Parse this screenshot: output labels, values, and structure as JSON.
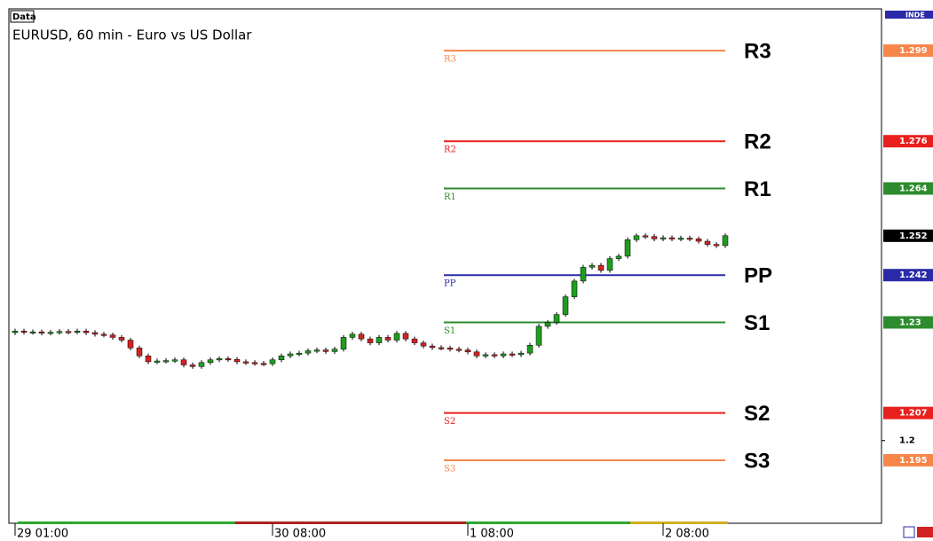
{
  "chart_data": {
    "type": "candlestick",
    "box_label": "Data",
    "title": "EURUSD, 60 min - Euro vs US Dollar",
    "open": [
      1.2274,
      1.2278,
      1.2275,
      1.2276,
      1.2273,
      1.2275,
      1.2277,
      1.2276,
      1.2278,
      1.2274,
      1.227,
      1.2268,
      1.2262,
      1.2255,
      1.2235,
      1.2215,
      1.22,
      1.2202,
      1.2203,
      1.2205,
      1.2192,
      1.2188,
      1.2198,
      1.2205,
      1.2208,
      1.2206,
      1.22,
      1.2198,
      1.2196,
      1.2195,
      1.2205,
      1.2215,
      1.222,
      1.2222,
      1.2228,
      1.223,
      1.2226,
      1.2232,
      1.2262,
      1.227,
      1.2258,
      1.2248,
      1.2262,
      1.2255,
      1.2272,
      1.2258,
      1.2248,
      1.224,
      1.2236,
      1.2235,
      1.2232,
      1.223,
      1.2225,
      1.2215,
      1.2218,
      1.2215,
      1.222,
      1.2218,
      1.2222,
      1.2242,
      1.229,
      1.23,
      1.232,
      1.2365,
      1.2405,
      1.244,
      1.2445,
      1.2432,
      1.2462,
      1.2468,
      1.251,
      1.252,
      1.2518,
      1.2512,
      1.2515,
      1.2512,
      1.2514,
      1.2512,
      1.2506,
      1.2498,
      1.2495
    ],
    "high": [
      1.2284,
      1.2284,
      1.2282,
      1.2282,
      1.2281,
      1.2283,
      1.2283,
      1.2284,
      1.2284,
      1.228,
      1.2276,
      1.2274,
      1.2268,
      1.2261,
      1.2241,
      1.2221,
      1.2208,
      1.2209,
      1.2211,
      1.2211,
      1.2198,
      1.2204,
      1.2211,
      1.2214,
      1.2214,
      1.2212,
      1.2206,
      1.2204,
      1.2202,
      1.2211,
      1.2221,
      1.2226,
      1.2228,
      1.2234,
      1.2236,
      1.2236,
      1.2238,
      1.2268,
      1.2276,
      1.2276,
      1.2264,
      1.2268,
      1.2268,
      1.2278,
      1.2278,
      1.2264,
      1.2254,
      1.2246,
      1.2242,
      1.2241,
      1.2238,
      1.2236,
      1.2231,
      1.2224,
      1.2224,
      1.2226,
      1.2226,
      1.2228,
      1.2248,
      1.2296,
      1.2306,
      1.2326,
      1.2371,
      1.2411,
      1.2446,
      1.2451,
      1.2451,
      1.2468,
      1.2474,
      1.2516,
      1.2526,
      1.2526,
      1.2524,
      1.2521,
      1.2521,
      1.252,
      1.252,
      1.2518,
      1.2512,
      1.2504,
      1.2526
    ],
    "low": [
      1.2268,
      1.2269,
      1.2269,
      1.2267,
      1.2267,
      1.2269,
      1.227,
      1.227,
      1.2268,
      1.2264,
      1.2262,
      1.2256,
      1.2249,
      1.2229,
      1.2209,
      1.2194,
      1.2194,
      1.2196,
      1.2197,
      1.2186,
      1.2182,
      1.2182,
      1.2192,
      1.2199,
      1.22,
      1.2194,
      1.2192,
      1.219,
      1.2189,
      1.2189,
      1.2199,
      1.2209,
      1.2214,
      1.2216,
      1.2222,
      1.222,
      1.222,
      1.2226,
      1.2256,
      1.2252,
      1.2242,
      1.2242,
      1.2249,
      1.2249,
      1.2252,
      1.2242,
      1.2234,
      1.223,
      1.2229,
      1.2226,
      1.2224,
      1.2219,
      1.2209,
      1.2209,
      1.2209,
      1.2209,
      1.2212,
      1.2212,
      1.2216,
      1.2236,
      1.2284,
      1.2294,
      1.2314,
      1.2359,
      1.2399,
      1.2434,
      1.2426,
      1.2426,
      1.2456,
      1.2462,
      1.2504,
      1.2512,
      1.2506,
      1.2506,
      1.2506,
      1.2506,
      1.2506,
      1.25,
      1.2492,
      1.2489,
      1.2489
    ],
    "close": [
      1.2278,
      1.2275,
      1.2276,
      1.2273,
      1.2275,
      1.2277,
      1.2276,
      1.2278,
      1.2274,
      1.227,
      1.2268,
      1.2262,
      1.2255,
      1.2235,
      1.2215,
      1.22,
      1.2202,
      1.2203,
      1.2205,
      1.2192,
      1.2188,
      1.2198,
      1.2205,
      1.2208,
      1.2206,
      1.22,
      1.2198,
      1.2196,
      1.2195,
      1.2205,
      1.2215,
      1.222,
      1.2222,
      1.2228,
      1.223,
      1.2226,
      1.2232,
      1.2262,
      1.227,
      1.2258,
      1.2248,
      1.2262,
      1.2255,
      1.2272,
      1.2258,
      1.2248,
      1.224,
      1.2236,
      1.2235,
      1.2232,
      1.223,
      1.2225,
      1.2215,
      1.2218,
      1.2215,
      1.222,
      1.2218,
      1.2222,
      1.2242,
      1.229,
      1.23,
      1.232,
      1.2365,
      1.2405,
      1.244,
      1.2445,
      1.2432,
      1.2462,
      1.2468,
      1.251,
      1.252,
      1.2518,
      1.2512,
      1.2515,
      1.2512,
      1.2514,
      1.2512,
      1.2506,
      1.2498,
      1.2495,
      1.252
    ],
    "up_color": "#1e9e1e",
    "down_color": "#d42222",
    "levels": [
      {
        "name": "R3",
        "value": 1.299,
        "color": "#f7864a"
      },
      {
        "name": "R2",
        "value": 1.276,
        "color": "#e8201e"
      },
      {
        "name": "R1",
        "value": 1.264,
        "color": "#2e8b2e"
      },
      {
        "name": "PP",
        "value": 1.242,
        "color": "#2a2aa8"
      },
      {
        "name": "S1",
        "value": 1.23,
        "color": "#2e8b2e"
      },
      {
        "name": "S2",
        "value": 1.207,
        "color": "#e8201e"
      },
      {
        "name": "S3",
        "value": 1.195,
        "color": "#f7864a"
      }
    ],
    "last_price": 1.252,
    "indicator_tag": "INDE",
    "ylim": [
      1.179,
      1.3096
    ],
    "yticks": [
      1.2
    ],
    "xlim": [
      -0.7,
      97.6
    ],
    "xticks": [
      {
        "value": 0,
        "label": "29 01:00"
      },
      {
        "value": 29,
        "label": "30 08:00"
      },
      {
        "value": 51,
        "label": "1 08:00"
      },
      {
        "value": 73,
        "label": "2 08:00"
      }
    ]
  }
}
